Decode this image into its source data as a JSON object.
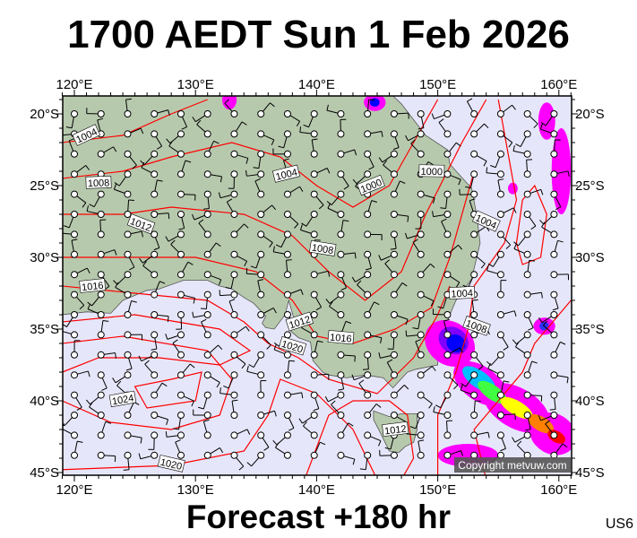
{
  "header": {
    "title": "1700 AEDT Sun 1 Feb 2026"
  },
  "footer": {
    "forecast": "Forecast +180 hr",
    "code": "US6"
  },
  "map": {
    "copyright": "Copyright metvuw.com",
    "lon_ticks": [
      "120°E",
      "130°E",
      "140°E",
      "150°E",
      "160°E"
    ],
    "lat_ticks": [
      "20°S",
      "25°S",
      "30°S",
      "35°S",
      "40°S",
      "45°S"
    ],
    "isobar_labels": [
      "1004",
      "1008",
      "1012",
      "1016",
      "1020",
      "1024",
      "1020",
      "1004",
      "1008",
      "1012",
      "1016",
      "1000",
      "1000",
      "1004",
      "1004",
      "1008",
      "1012"
    ],
    "colors": {
      "sea": "#e6e6fa",
      "land": "#b7c9ad",
      "isobar": "#ff0000",
      "rain_heavy": "#ff00ff",
      "rain_core": "#0000ff"
    }
  }
}
